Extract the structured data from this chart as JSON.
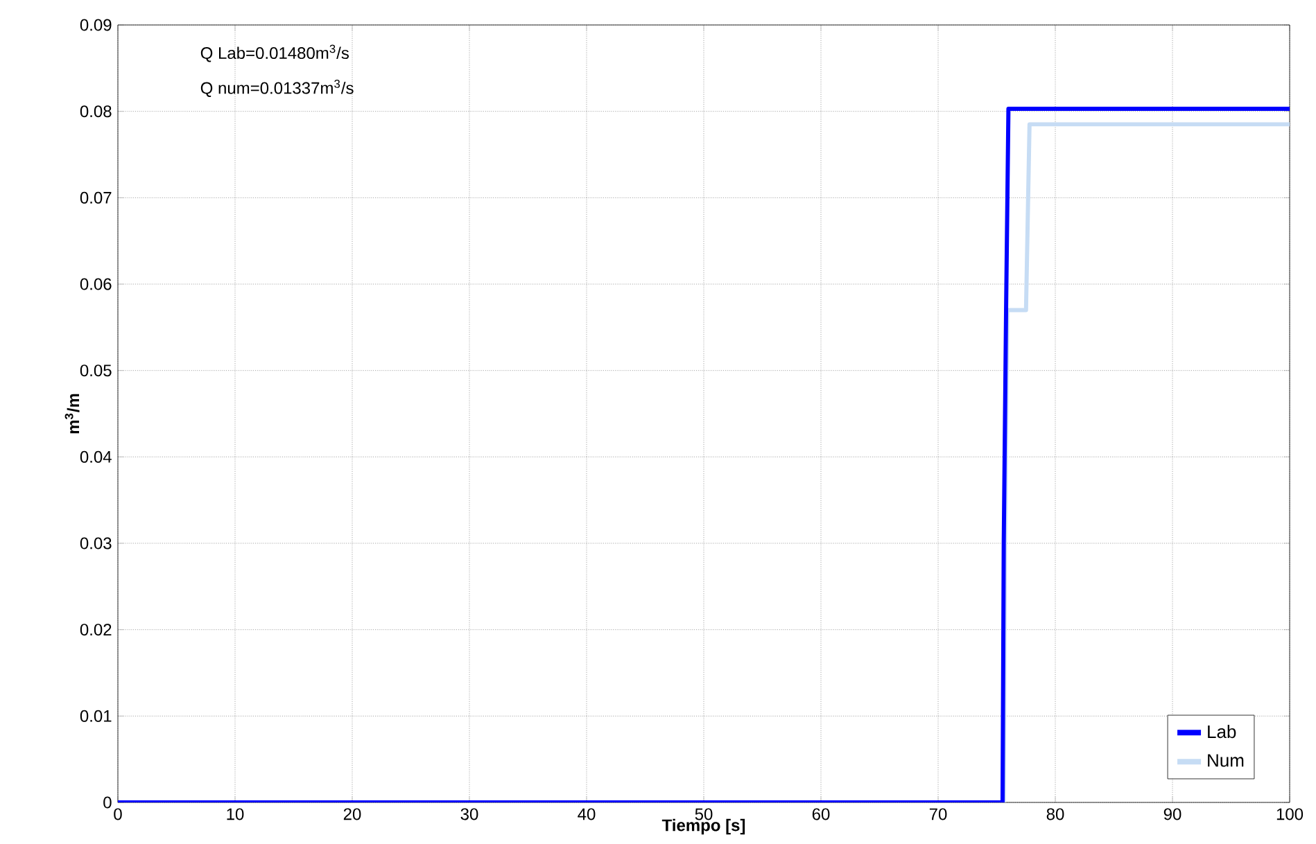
{
  "chart_data": {
    "type": "line",
    "xlabel": "Tiempo [s]",
    "ylabel": "m$^{3}$/m",
    "xlim": [
      0,
      100
    ],
    "ylim": [
      0,
      0.09
    ],
    "xticks": [
      0,
      10,
      20,
      30,
      40,
      50,
      60,
      70,
      80,
      90,
      100
    ],
    "yticks": [
      0,
      0.01,
      0.02,
      0.03,
      0.04,
      0.05,
      0.06,
      0.07,
      0.08,
      0.09
    ],
    "grid": true,
    "legend": "bottom right",
    "marker": "none",
    "line_style": "solid",
    "annotations": [
      "Q Lab=0.01480m$^{3}$/s",
      "Q num=0.01337m$^{3}$/s"
    ],
    "series": [
      {
        "name": "Num",
        "color": "#c6dcf4",
        "x": [
          0,
          75.6,
          75.7,
          75.9,
          77.5,
          77.8,
          100
        ],
        "values": [
          0,
          0,
          0.03,
          0.057,
          0.057,
          0.0785,
          0.0785
        ]
      },
      {
        "name": "Lab",
        "color": "#0000ff",
        "x": [
          0,
          75.5,
          75.6,
          75.8,
          76,
          100
        ],
        "values": [
          0,
          0,
          0.03,
          0.057,
          0.0803,
          0.0803
        ]
      }
    ]
  }
}
